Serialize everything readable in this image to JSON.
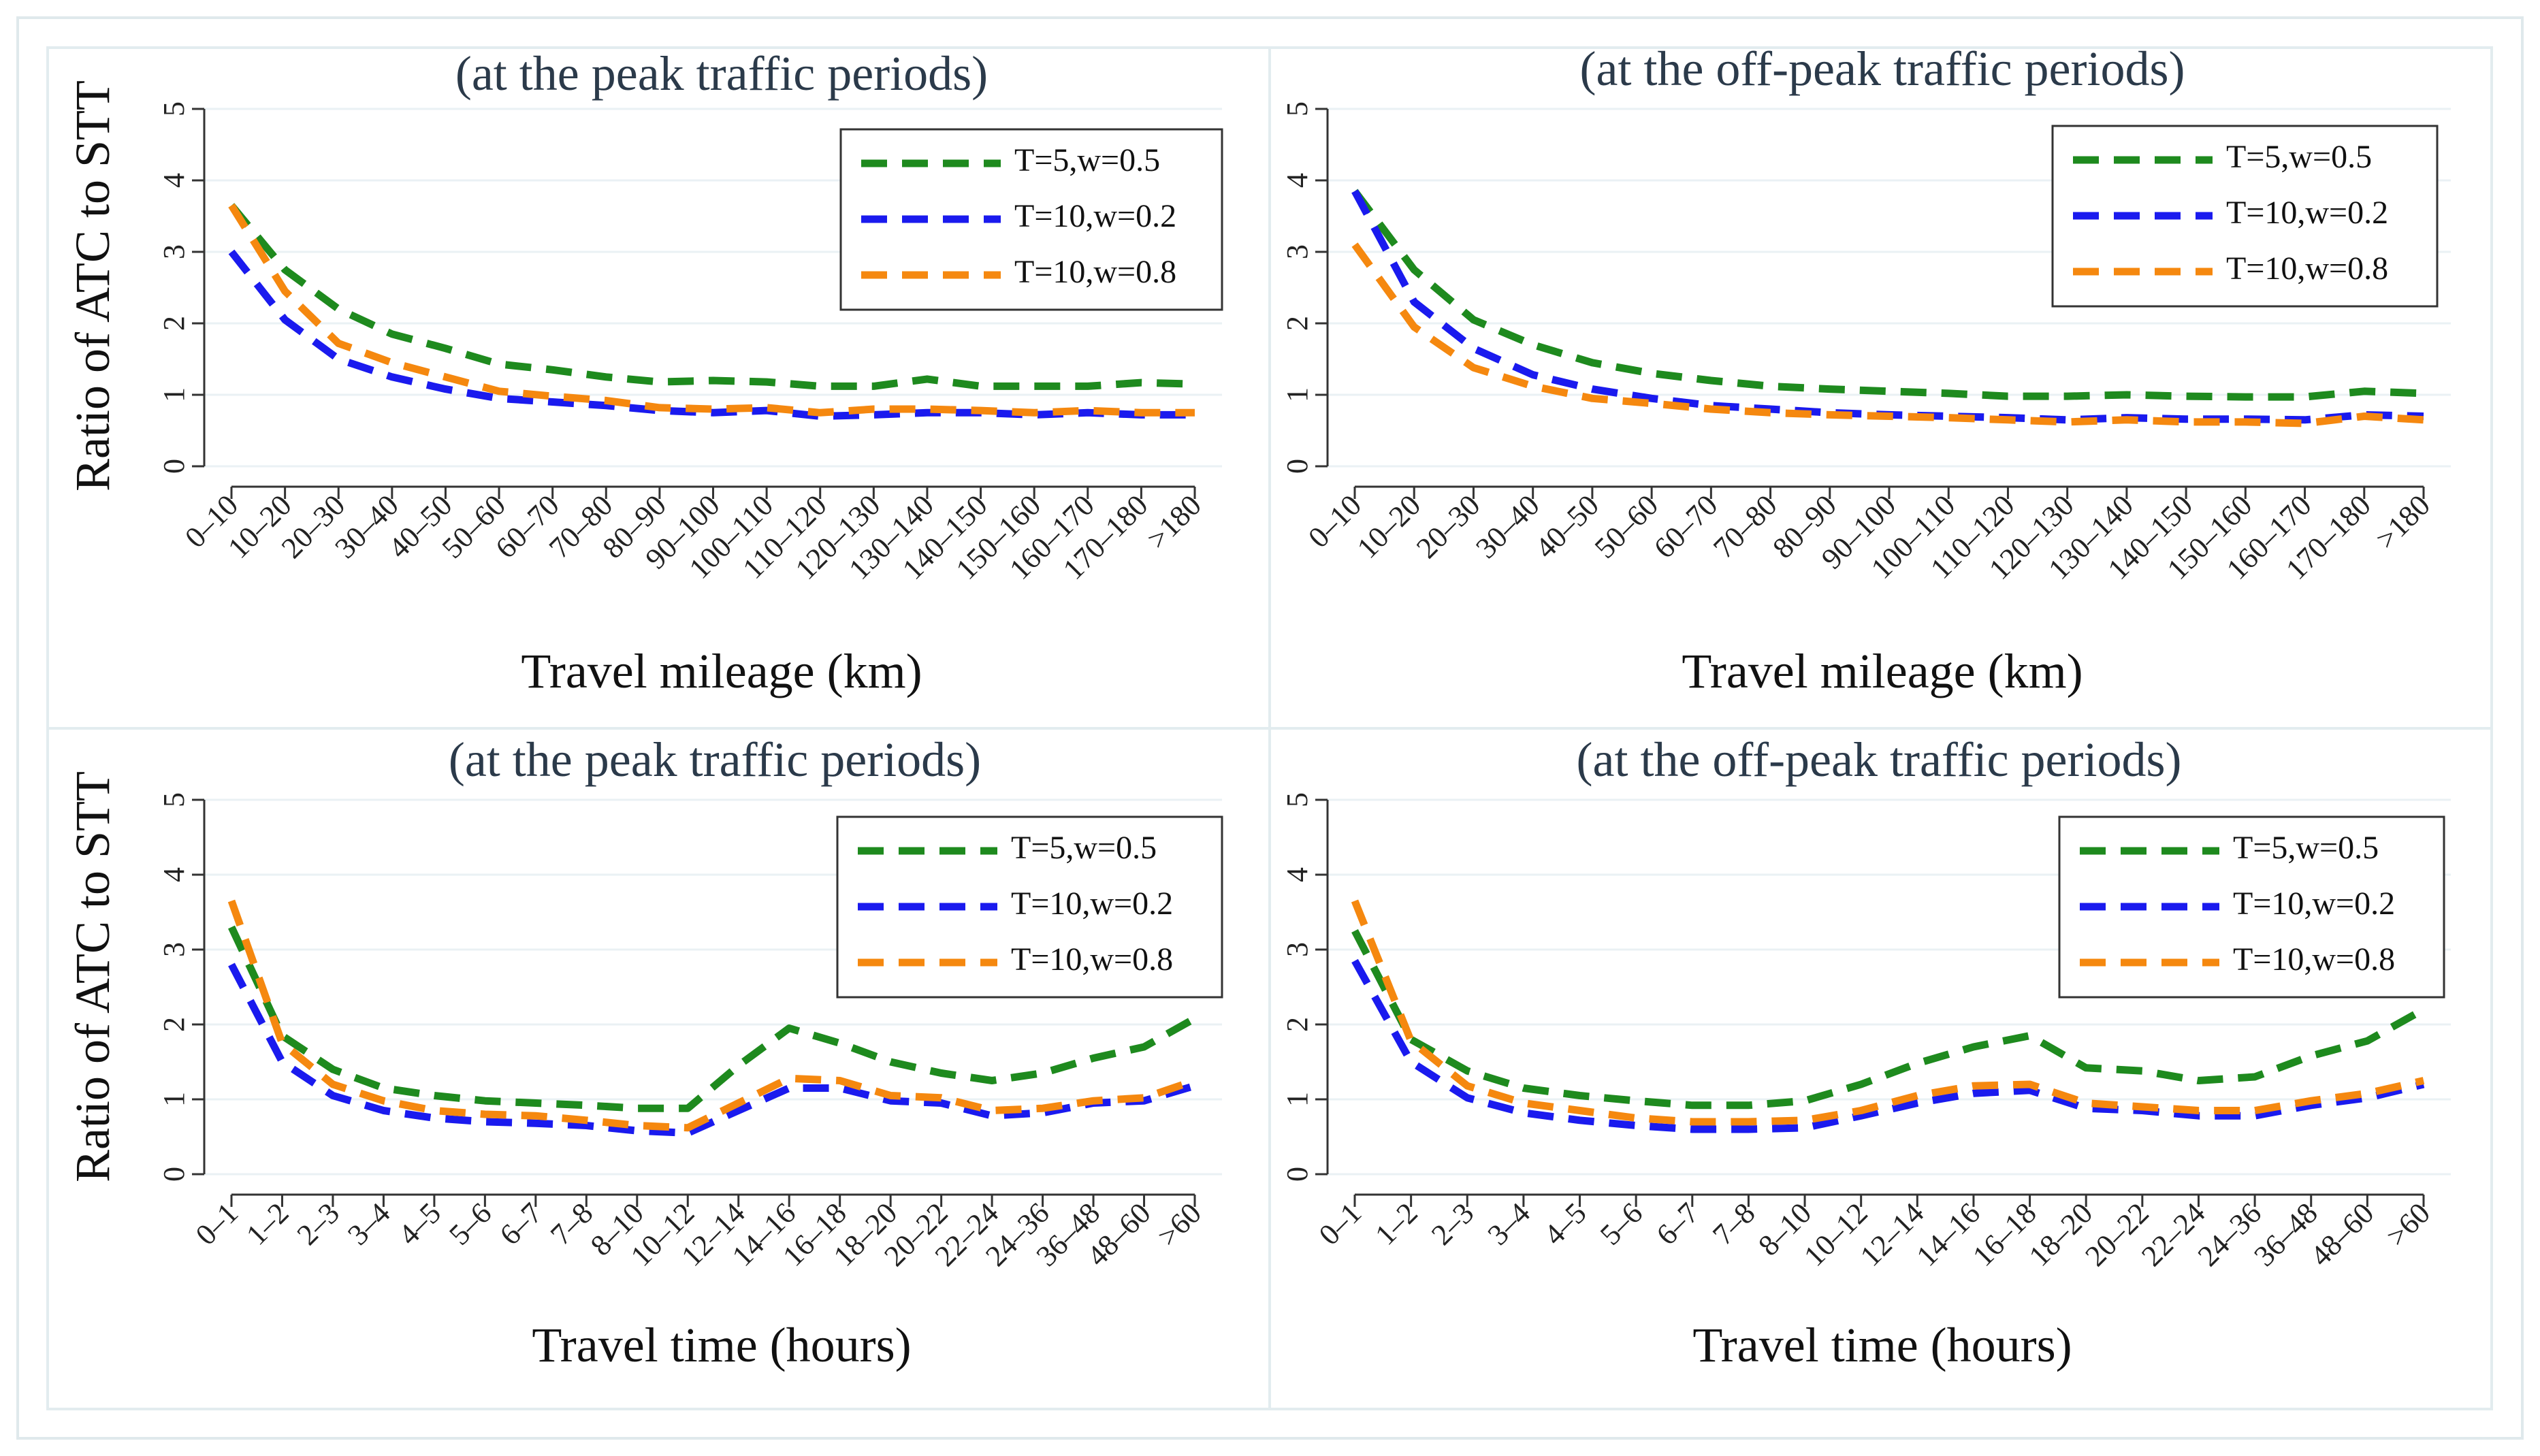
{
  "y_axis_label": "Ratio of ATC to STT",
  "legend": [
    {
      "name": "T=5,w=0.5",
      "color": "#1e8a1e"
    },
    {
      "name": "T=10,w=0.2",
      "color": "#1a1aee"
    },
    {
      "name": "T=10,w=0.8",
      "color": "#f5880f"
    }
  ],
  "chart_data": [
    {
      "type": "line",
      "title": "(at the peak traffic periods)",
      "xlabel": "Travel mileage (km)",
      "ylabel": "Ratio of ATC to STT",
      "ylim": [
        0,
        5
      ],
      "yticks": [
        0,
        1,
        2,
        3,
        4,
        5
      ],
      "categories": [
        "0–10",
        "10–20",
        "20–30",
        "30–40",
        "40–50",
        "50–60",
        "60–70",
        "70–80",
        "80–90",
        "90–100",
        "100–110",
        "110–120",
        "120–130",
        "130–140",
        "140–150",
        "150–160",
        "160–170",
        "170–180",
        ">180"
      ],
      "series": [
        {
          "name": "T=5,w=0.5",
          "color": "#1e8a1e",
          "values": [
            3.65,
            2.75,
            2.2,
            1.85,
            1.65,
            1.43,
            1.35,
            1.25,
            1.18,
            1.2,
            1.18,
            1.12,
            1.12,
            1.22,
            1.12,
            1.12,
            1.12,
            1.17,
            1.15
          ]
        },
        {
          "name": "T=10,w=0.2",
          "color": "#1a1aee",
          "values": [
            3.0,
            2.05,
            1.5,
            1.25,
            1.08,
            0.95,
            0.9,
            0.85,
            0.78,
            0.75,
            0.78,
            0.7,
            0.72,
            0.75,
            0.75,
            0.72,
            0.75,
            0.72,
            0.72
          ]
        },
        {
          "name": "T=10,w=0.8",
          "color": "#f5880f",
          "values": [
            3.65,
            2.45,
            1.72,
            1.45,
            1.25,
            1.05,
            0.98,
            0.92,
            0.82,
            0.8,
            0.82,
            0.75,
            0.8,
            0.8,
            0.78,
            0.75,
            0.78,
            0.75,
            0.75
          ]
        }
      ]
    },
    {
      "type": "line",
      "title": "(at the off-peak traffic periods)",
      "xlabel": "Travel mileage (km)",
      "ylabel": "",
      "ylim": [
        0,
        5
      ],
      "yticks": [
        0,
        1,
        2,
        3,
        4,
        5
      ],
      "categories": [
        "0–10",
        "10–20",
        "20–30",
        "30–40",
        "40–50",
        "50–60",
        "60–70",
        "70–80",
        "80–90",
        "90–100",
        "100–110",
        "110–120",
        "120–130",
        "130–140",
        "140–150",
        "150–160",
        "160–170",
        "170–180",
        ">180"
      ],
      "series": [
        {
          "name": "T=5,w=0.5",
          "color": "#1e8a1e",
          "values": [
            3.85,
            2.75,
            2.05,
            1.7,
            1.45,
            1.3,
            1.2,
            1.12,
            1.08,
            1.05,
            1.02,
            0.98,
            0.98,
            1.0,
            0.98,
            0.97,
            0.97,
            1.05,
            1.02
          ]
        },
        {
          "name": "T=10,w=0.2",
          "color": "#1a1aee",
          "values": [
            3.85,
            2.3,
            1.65,
            1.28,
            1.08,
            0.95,
            0.85,
            0.8,
            0.75,
            0.72,
            0.7,
            0.68,
            0.65,
            0.68,
            0.66,
            0.66,
            0.65,
            0.72,
            0.7
          ]
        },
        {
          "name": "T=10,w=0.8",
          "color": "#f5880f",
          "values": [
            3.1,
            1.95,
            1.38,
            1.12,
            0.95,
            0.88,
            0.8,
            0.75,
            0.72,
            0.7,
            0.68,
            0.65,
            0.62,
            0.65,
            0.62,
            0.62,
            0.6,
            0.7,
            0.65
          ]
        }
      ]
    },
    {
      "type": "line",
      "title": "(at the peak traffic periods)",
      "xlabel": "Travel time (hours)",
      "ylabel": "Ratio of ATC to STT",
      "ylim": [
        0,
        5
      ],
      "yticks": [
        0,
        1,
        2,
        3,
        4,
        5
      ],
      "categories": [
        "0–1",
        "1–2",
        "2–3",
        "3–4",
        "4–5",
        "5–6",
        "6–7",
        "7–8",
        "8–10",
        "10–12",
        "12–14",
        "14–16",
        "16–18",
        "18–20",
        "20–22",
        "22–24",
        "24–36",
        "36–48",
        "48–60",
        ">60"
      ],
      "series": [
        {
          "name": "T=5,w=0.5",
          "color": "#1e8a1e",
          "values": [
            3.3,
            1.85,
            1.4,
            1.15,
            1.05,
            0.98,
            0.95,
            0.92,
            0.88,
            0.88,
            1.45,
            1.95,
            1.75,
            1.5,
            1.35,
            1.25,
            1.35,
            1.55,
            1.7,
            2.08
          ]
        },
        {
          "name": "T=10,w=0.2",
          "color": "#1a1aee",
          "values": [
            2.8,
            1.5,
            1.05,
            0.85,
            0.75,
            0.7,
            0.68,
            0.65,
            0.58,
            0.55,
            0.85,
            1.15,
            1.15,
            0.98,
            0.95,
            0.78,
            0.82,
            0.95,
            0.98,
            1.18
          ]
        },
        {
          "name": "T=10,w=0.8",
          "color": "#f5880f",
          "values": [
            3.65,
            1.75,
            1.2,
            0.98,
            0.85,
            0.8,
            0.78,
            0.72,
            0.65,
            0.62,
            0.95,
            1.28,
            1.25,
            1.05,
            1.02,
            0.85,
            0.88,
            0.98,
            1.02,
            1.25
          ]
        }
      ]
    },
    {
      "type": "line",
      "title": "(at the off-peak traffic periods)",
      "xlabel": "Travel time (hours)",
      "ylabel": "",
      "ylim": [
        0,
        5
      ],
      "yticks": [
        0,
        1,
        2,
        3,
        4,
        5
      ],
      "categories": [
        "0–1",
        "1–2",
        "2–3",
        "3–4",
        "4–5",
        "5–6",
        "6–7",
        "7–8",
        "8–10",
        "10–12",
        "12–14",
        "14–16",
        "16–18",
        "18–20",
        "20–22",
        "22–24",
        "24–36",
        "36–48",
        "48–60",
        ">60"
      ],
      "series": [
        {
          "name": "T=5,w=0.5",
          "color": "#1e8a1e",
          "values": [
            3.25,
            1.8,
            1.38,
            1.15,
            1.05,
            0.98,
            0.92,
            0.92,
            0.98,
            1.2,
            1.48,
            1.7,
            1.85,
            1.42,
            1.38,
            1.25,
            1.3,
            1.58,
            1.78,
            2.2
          ]
        },
        {
          "name": "T=10,w=0.2",
          "color": "#1a1aee",
          "values": [
            2.85,
            1.5,
            1.02,
            0.82,
            0.72,
            0.65,
            0.6,
            0.6,
            0.62,
            0.78,
            0.95,
            1.08,
            1.12,
            0.88,
            0.85,
            0.78,
            0.78,
            0.92,
            1.02,
            1.2
          ]
        },
        {
          "name": "T=10,w=0.8",
          "color": "#f5880f",
          "values": [
            3.65,
            1.78,
            1.18,
            0.95,
            0.85,
            0.75,
            0.7,
            0.7,
            0.72,
            0.85,
            1.05,
            1.18,
            1.2,
            0.95,
            0.9,
            0.85,
            0.85,
            0.98,
            1.08,
            1.25
          ]
        }
      ]
    }
  ]
}
